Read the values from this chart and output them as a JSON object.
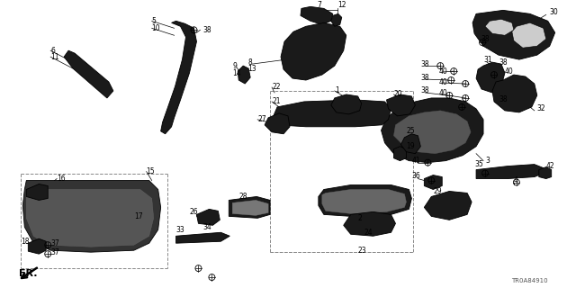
{
  "part_number": "TR0A84910",
  "background_color": "#ffffff",
  "fontsize_label": 5.5,
  "fontsize_partnum": 5.0,
  "fig_w": 6.4,
  "fig_h": 3.2,
  "dpi": 100
}
